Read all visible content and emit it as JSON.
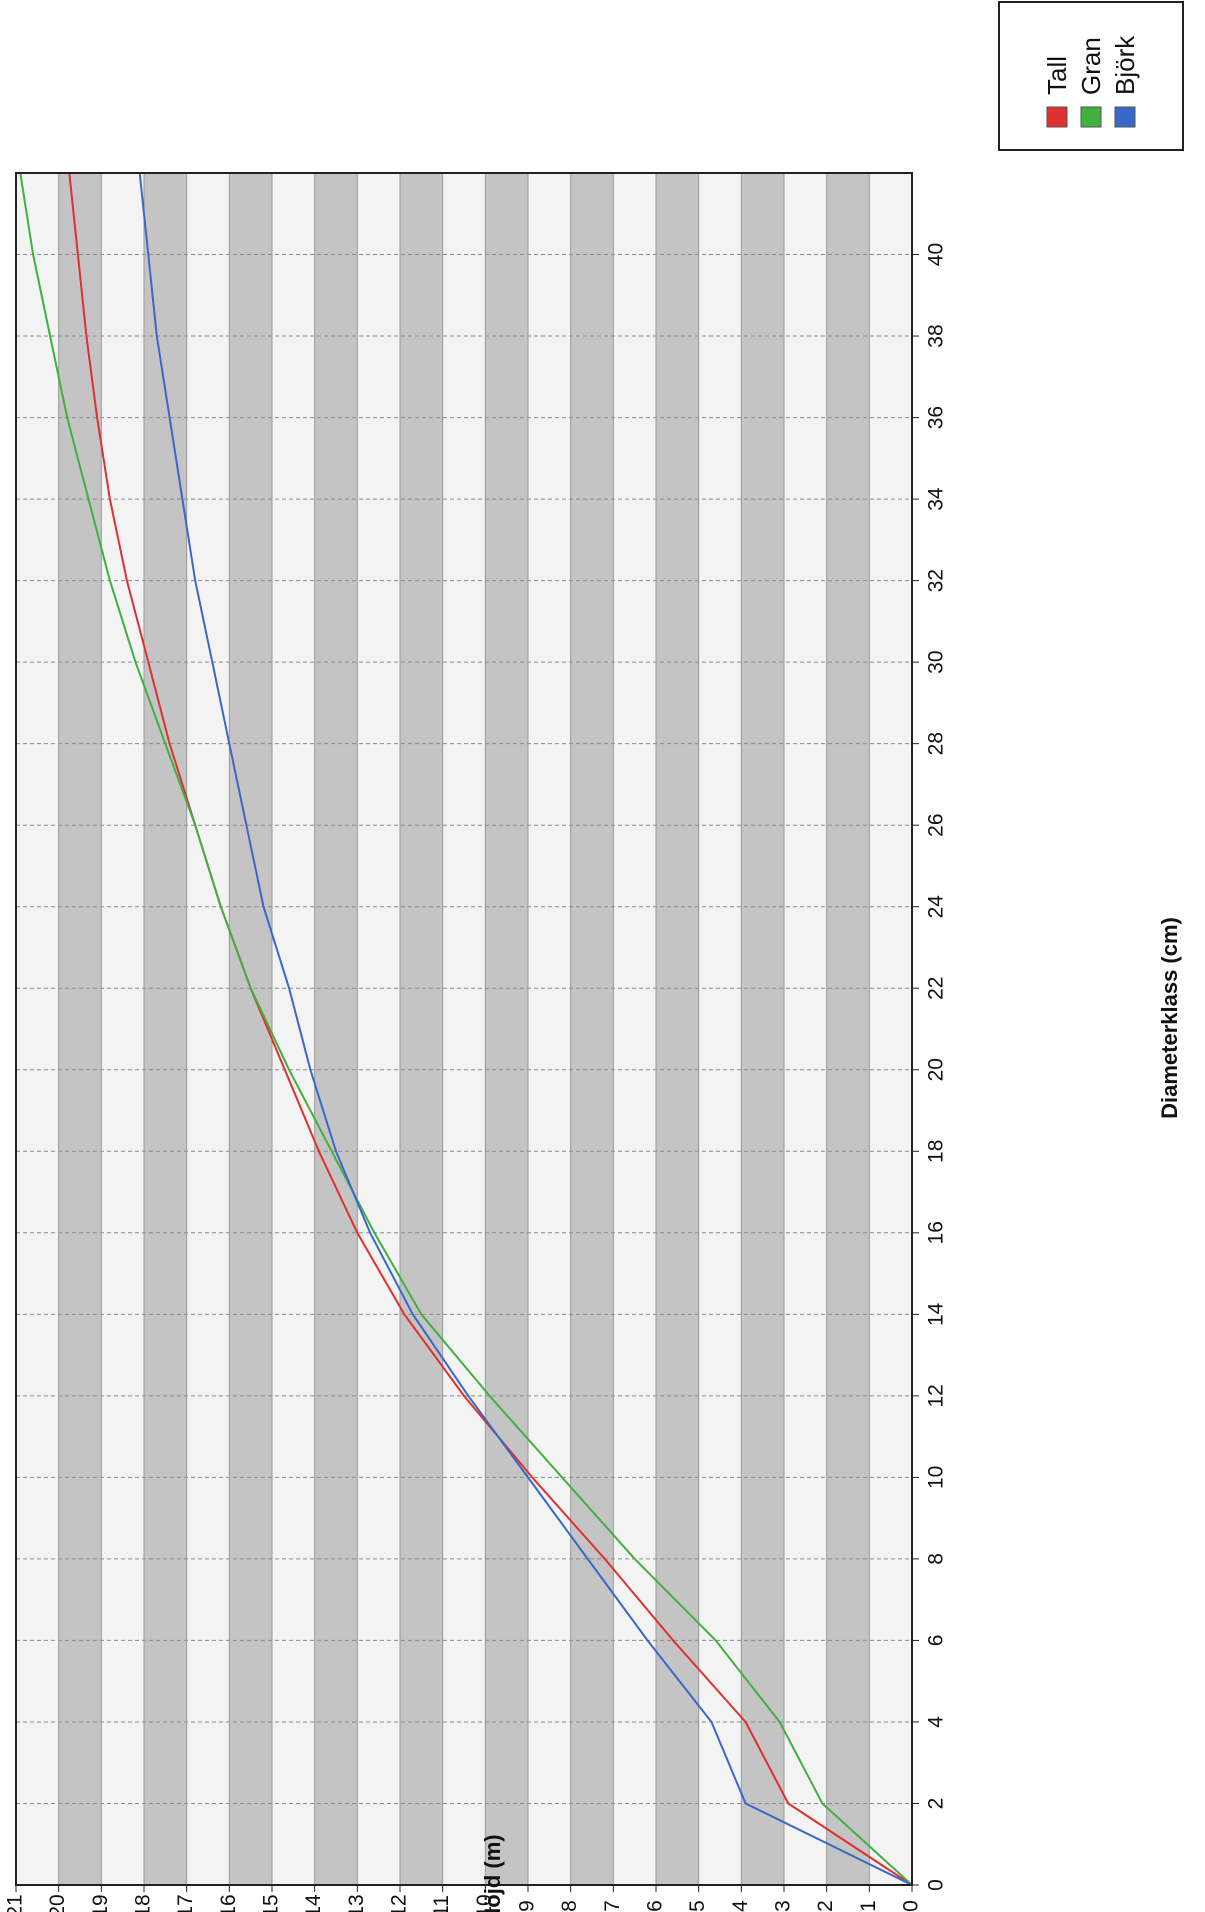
{
  "chart_data": {
    "type": "line",
    "orientation": "rotated-90",
    "xlabel": "Diameterklass (cm)",
    "ylabel": "Höjd (m)",
    "xlim": [
      0,
      42
    ],
    "ylim": [
      0,
      21
    ],
    "x_ticks": [
      0,
      2,
      4,
      6,
      8,
      10,
      12,
      14,
      16,
      18,
      20,
      22,
      24,
      26,
      28,
      30,
      32,
      34,
      36,
      38,
      40
    ],
    "y_ticks": [
      0,
      1,
      2,
      3,
      4,
      5,
      6,
      7,
      8,
      9,
      10,
      11,
      12,
      13,
      14,
      15,
      16,
      17,
      18,
      19,
      20,
      21
    ],
    "grid": true,
    "legend_position": "top-right",
    "series": [
      {
        "name": "Tall",
        "color": "#e03030",
        "x": [
          0,
          2,
          4,
          6,
          8,
          10,
          12,
          14,
          16,
          18,
          20,
          22,
          24,
          26,
          28,
          30,
          32,
          34,
          36,
          38,
          40,
          42
        ],
        "y": [
          0,
          2.9,
          3.9,
          5.6,
          7.2,
          8.9,
          10.5,
          11.9,
          13.0,
          13.9,
          14.7,
          15.5,
          16.2,
          16.8,
          17.4,
          17.9,
          18.4,
          18.8,
          19.1,
          19.35,
          19.55,
          19.75
        ]
      },
      {
        "name": "Gran",
        "color": "#40b040",
        "x": [
          0,
          2,
          4,
          6,
          8,
          10,
          12,
          14,
          16,
          18,
          20,
          22,
          24,
          26,
          28,
          30,
          32,
          34,
          36,
          38,
          40,
          42
        ],
        "y": [
          0,
          2.1,
          3.1,
          4.6,
          6.5,
          8.2,
          9.9,
          11.5,
          12.6,
          13.6,
          14.6,
          15.5,
          16.2,
          16.8,
          17.5,
          18.2,
          18.8,
          19.3,
          19.8,
          20.2,
          20.6,
          20.9
        ]
      },
      {
        "name": "Björk",
        "color": "#3a68c8",
        "x": [
          0,
          2,
          4,
          6,
          8,
          10,
          12,
          14,
          16,
          18,
          20,
          22,
          24,
          26,
          28,
          30,
          32,
          34,
          36,
          38,
          40,
          42
        ],
        "y": [
          0,
          3.9,
          4.7,
          6.2,
          7.6,
          9.0,
          10.4,
          11.7,
          12.7,
          13.5,
          14.1,
          14.6,
          15.2,
          15.6,
          16.0,
          16.4,
          16.8,
          17.1,
          17.4,
          17.7,
          17.9,
          18.1
        ]
      }
    ]
  }
}
